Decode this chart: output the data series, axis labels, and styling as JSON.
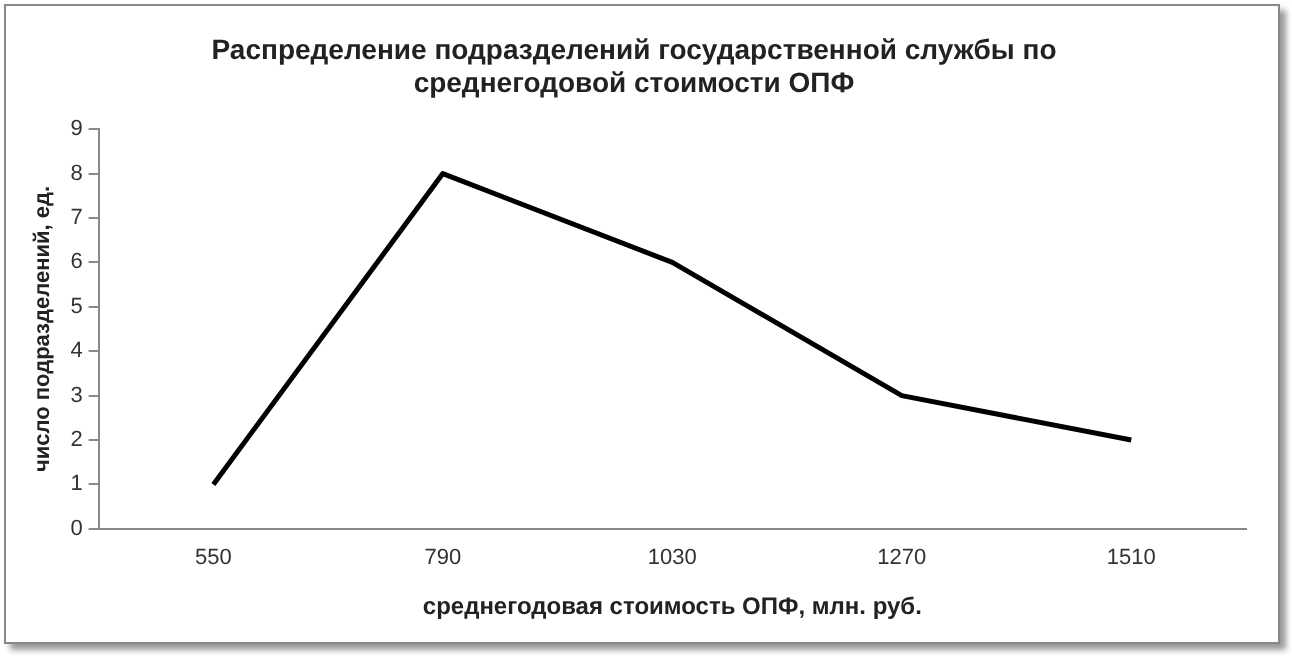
{
  "chart_data": {
    "type": "line",
    "title": "Распределение подразделений государственной службы по среднегодовой стоимости ОПФ",
    "xlabel": "среднегодовая стоимость ОПФ, млн. руб.",
    "ylabel": "число подразделений, ед.",
    "categories": [
      "550",
      "790",
      "1030",
      "1270",
      "1510"
    ],
    "series": [
      {
        "color": "#000000",
        "values": [
          1,
          8,
          6,
          3,
          2
        ]
      }
    ],
    "ylim": [
      0,
      9
    ],
    "yticks": [
      0,
      1,
      2,
      3,
      4,
      5,
      6,
      7,
      8,
      9
    ],
    "grid": false,
    "legend": false,
    "marker": "none",
    "line_style": "solid"
  }
}
